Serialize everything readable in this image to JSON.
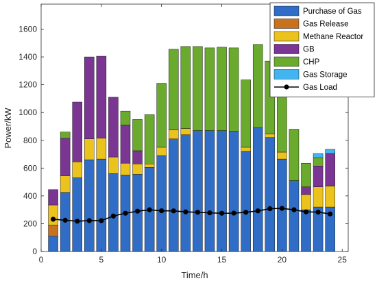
{
  "chart_data": {
    "type": "bar",
    "stacked": true,
    "xlabel": "Time/h",
    "ylabel": "Power/kW",
    "xlim": [
      0,
      25.5
    ],
    "ylim": [
      0,
      1780
    ],
    "xticks": [
      0,
      5,
      10,
      15,
      20,
      25
    ],
    "yticks": [
      0,
      200,
      400,
      600,
      800,
      1000,
      1200,
      1400,
      1600
    ],
    "grid": false,
    "legend_position": "top-right",
    "categories": [
      1,
      2,
      3,
      4,
      5,
      6,
      7,
      8,
      9,
      10,
      11,
      12,
      13,
      14,
      15,
      16,
      17,
      18,
      19,
      20,
      21,
      22,
      23,
      24
    ],
    "series": [
      {
        "name": "Purchase of Gas",
        "color": "#2f6dc6",
        "values": [
          110,
          425,
          530,
          660,
          665,
          560,
          550,
          555,
          605,
          690,
          810,
          840,
          870,
          870,
          870,
          865,
          720,
          890,
          820,
          665,
          510,
          300,
          320,
          320
        ]
      },
      {
        "name": "Gas Release",
        "color": "#c8711f",
        "values": [
          80,
          0,
          0,
          0,
          0,
          0,
          0,
          0,
          0,
          0,
          0,
          0,
          0,
          0,
          0,
          0,
          0,
          0,
          0,
          0,
          0,
          0,
          0,
          0
        ]
      },
      {
        "name": "Methane Reactor",
        "color": "#ecc21d",
        "values": [
          145,
          120,
          115,
          150,
          150,
          120,
          85,
          75,
          25,
          60,
          65,
          45,
          0,
          0,
          0,
          0,
          30,
          0,
          25,
          50,
          0,
          110,
          145,
          150
        ]
      },
      {
        "name": "GB",
        "color": "#7b3593",
        "values": [
          110,
          270,
          430,
          590,
          590,
          430,
          275,
          95,
          0,
          0,
          0,
          0,
          0,
          0,
          0,
          0,
          0,
          0,
          0,
          0,
          0,
          55,
          150,
          235
        ]
      },
      {
        "name": "CHP",
        "color": "#6aaa2c",
        "values": [
          0,
          45,
          0,
          0,
          0,
          0,
          100,
          225,
          355,
          460,
          580,
          590,
          605,
          595,
          600,
          600,
          485,
          600,
          525,
          420,
          370,
          170,
          60,
          0
        ]
      },
      {
        "name": "Gas Storage",
        "color": "#43b4ef",
        "values": [
          0,
          0,
          0,
          0,
          0,
          0,
          0,
          0,
          0,
          0,
          0,
          0,
          0,
          0,
          0,
          0,
          0,
          0,
          0,
          0,
          0,
          0,
          30,
          30
        ]
      }
    ],
    "line": {
      "name": "Gas Load",
      "color": "#000000",
      "values": [
        232,
        225,
        218,
        222,
        222,
        255,
        275,
        290,
        300,
        293,
        292,
        285,
        282,
        278,
        275,
        276,
        282,
        292,
        308,
        310,
        300,
        285,
        283,
        270
      ]
    }
  }
}
